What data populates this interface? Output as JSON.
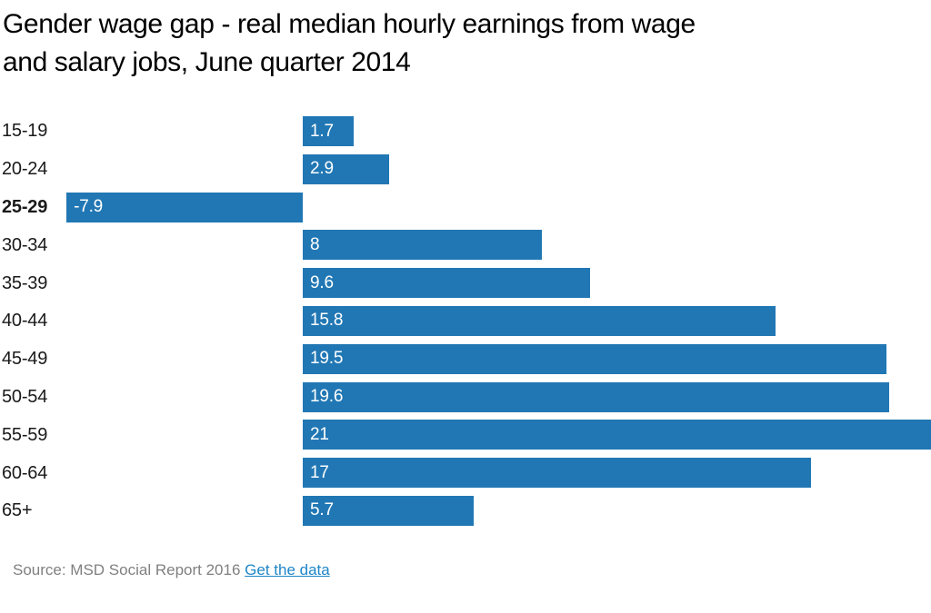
{
  "title": "Gender wage gap - real median hourly earnings from wage and salary jobs, June quarter 2014",
  "title_lines": [
    "Gender wage gap - real median hourly earnings from wage",
    "and salary jobs, June quarter 2014"
  ],
  "source": {
    "prefix": "Source: MSD Social Report 2016",
    "link_label": "Get the data"
  },
  "colors": {
    "bar": "#2177b4",
    "link": "#1e86c8",
    "source_text": "#808080",
    "title_text": "#000000",
    "category_text": "#1a1a1a",
    "value_label_text": "#ffffff"
  },
  "chart_data": {
    "type": "bar",
    "orientation": "horizontal",
    "title": "Gender wage gap - real median hourly earnings from wage and salary jobs, June quarter 2014",
    "xlabel": "",
    "ylabel": "",
    "categories": [
      "15-19",
      "20-24",
      "25-29",
      "30-34",
      "35-39",
      "40-44",
      "45-49",
      "50-54",
      "55-59",
      "60-64",
      "65+"
    ],
    "values": [
      1.7,
      2.9,
      -7.9,
      8,
      9.6,
      15.8,
      19.5,
      19.6,
      21,
      17,
      5.7
    ],
    "value_labels": [
      "1.7",
      "2.9",
      "-7.9",
      "8",
      "9.6",
      "15.8",
      "19.5",
      "19.6",
      "21",
      "17",
      "5.7"
    ],
    "emphasized_category": "25-29",
    "xlim": [
      -7.9,
      21
    ],
    "grid": false,
    "legend": false,
    "bar_color": "#2177b4",
    "value_labels_inside_bar": true
  }
}
